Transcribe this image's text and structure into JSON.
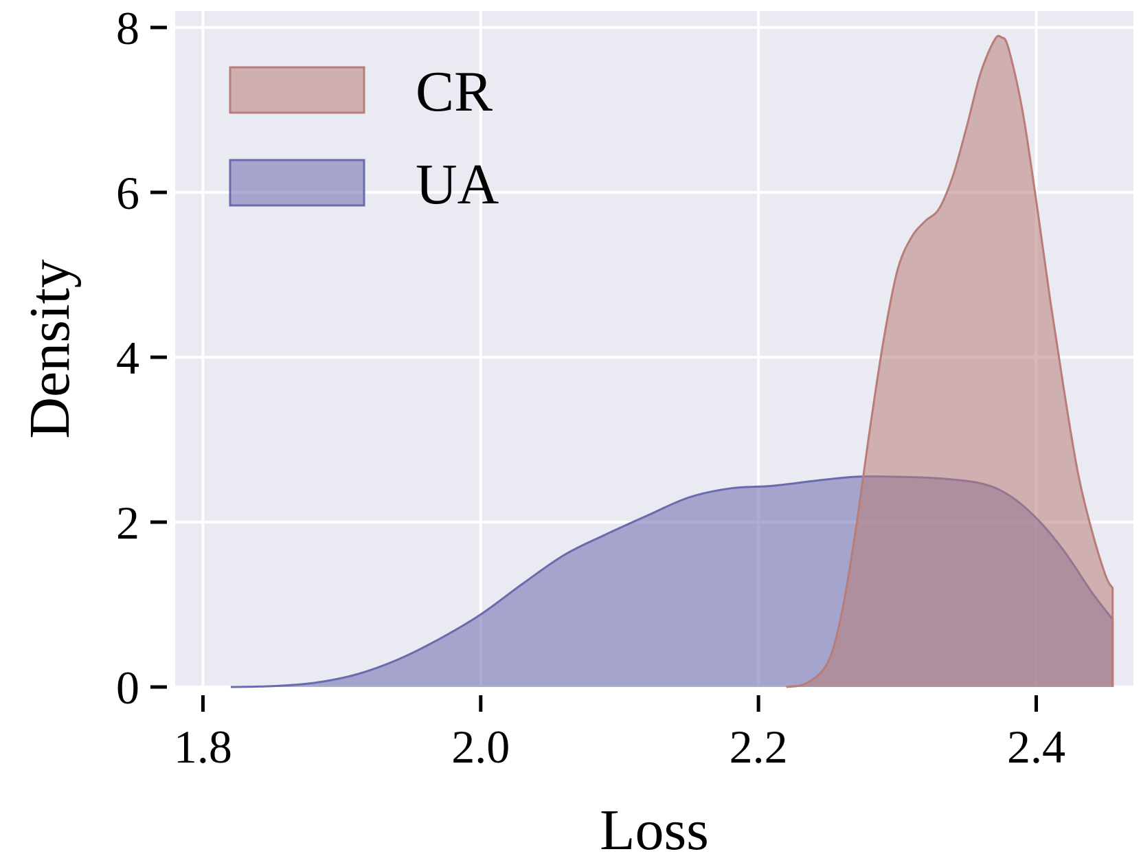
{
  "chart_data": {
    "type": "area",
    "title": "",
    "xlabel": "Loss",
    "ylabel": "Density",
    "xlim": [
      1.78,
      2.47
    ],
    "ylim": [
      0,
      8.2
    ],
    "xticks": [
      "1.8",
      "2.0",
      "2.2",
      "2.4"
    ],
    "yticks": [
      "0",
      "2",
      "4",
      "6",
      "8"
    ],
    "grid": true,
    "legend_position": "top-left",
    "background": "#eaeaf2",
    "series": [
      {
        "name": "CR",
        "color": "#b87d78",
        "x": [
          2.22,
          2.235,
          2.25,
          2.26,
          2.27,
          2.28,
          2.29,
          2.3,
          2.31,
          2.32,
          2.33,
          2.34,
          2.35,
          2.36,
          2.37,
          2.375,
          2.38,
          2.39,
          2.4,
          2.41,
          2.42,
          2.43,
          2.44,
          2.45,
          2.455
        ],
        "y": [
          0,
          0.05,
          0.3,
          0.9,
          1.9,
          3.1,
          4.2,
          5.05,
          5.45,
          5.65,
          5.8,
          6.2,
          6.8,
          7.45,
          7.85,
          7.88,
          7.75,
          7.0,
          5.9,
          4.7,
          3.6,
          2.6,
          1.9,
          1.35,
          1.2
        ]
      },
      {
        "name": "UA",
        "color": "#6a6aaf",
        "x": [
          1.82,
          1.85,
          1.88,
          1.91,
          1.94,
          1.97,
          2.0,
          2.03,
          2.06,
          2.09,
          2.12,
          2.15,
          2.18,
          2.21,
          2.24,
          2.27,
          2.3,
          2.33,
          2.36,
          2.38,
          2.4,
          2.42,
          2.44,
          2.455
        ],
        "y": [
          0,
          0.01,
          0.05,
          0.15,
          0.33,
          0.58,
          0.88,
          1.25,
          1.6,
          1.85,
          2.08,
          2.3,
          2.41,
          2.44,
          2.5,
          2.55,
          2.55,
          2.53,
          2.47,
          2.33,
          2.05,
          1.65,
          1.15,
          0.82
        ]
      }
    ]
  }
}
